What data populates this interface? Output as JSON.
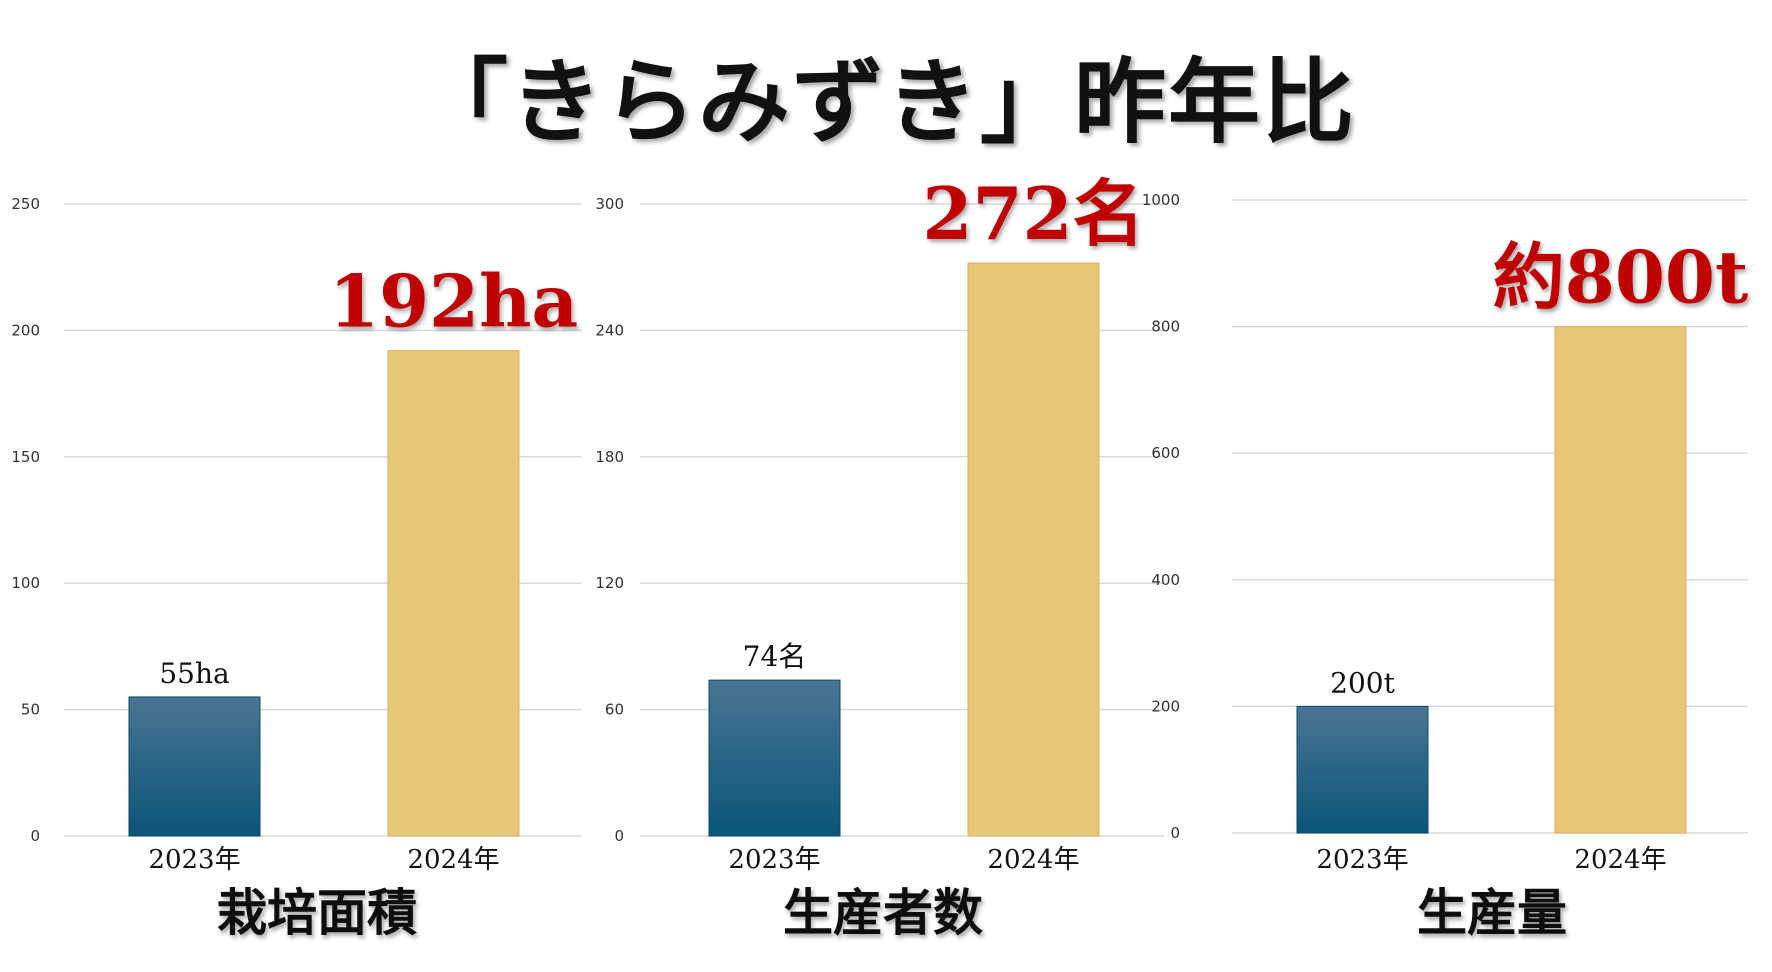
{
  "title": "「きらみずき」昨年比",
  "colors": {
    "bar_2023_top": "#4a7594",
    "bar_2023_bottom": "#0a5578",
    "bar_2024": "#e8c677",
    "highlight": "#c00000",
    "grid": "#d9d9d9"
  },
  "chart_data": [
    {
      "type": "bar",
      "title": "栽培面積",
      "categories": [
        "2023年",
        "2024年"
      ],
      "values": [
        55,
        192
      ],
      "data_labels": [
        "55ha",
        "192ha"
      ],
      "yticks": [
        "0",
        "50",
        "100",
        "150",
        "200",
        "250"
      ],
      "ylim": [
        0,
        250
      ],
      "grid": true
    },
    {
      "type": "bar",
      "title": "生産者数",
      "categories": [
        "2023年",
        "2024年"
      ],
      "values": [
        74,
        272
      ],
      "data_labels": [
        "74名",
        "272名"
      ],
      "yticks": [
        "0",
        "60",
        "120",
        "180",
        "240",
        "300"
      ],
      "ylim": [
        0,
        300
      ],
      "grid": true
    },
    {
      "type": "bar",
      "title": "生産量",
      "categories": [
        "2023年",
        "2024年"
      ],
      "values": [
        200,
        800
      ],
      "data_labels": [
        "200t",
        "約800t"
      ],
      "yticks": [
        "0",
        "200",
        "400",
        "600",
        "800",
        "1000"
      ],
      "ylim": [
        0,
        1000
      ],
      "grid": true
    }
  ]
}
